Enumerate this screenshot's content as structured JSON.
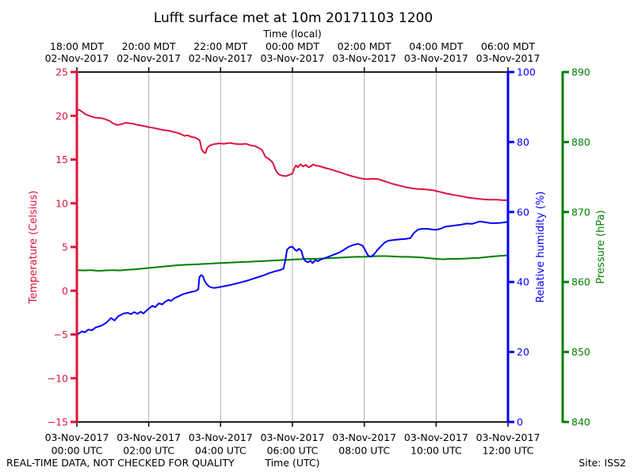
{
  "figure": {
    "footer_note": "REAL-TIME DATA, NOT CHECKED FOR QUALITY",
    "site_label": "Site: ISS2"
  },
  "chart_data": {
    "type": "line",
    "title": "Lufft surface met at 10m 20171103 1200",
    "x_range_hours": [
      0,
      12
    ],
    "grid_hours": [
      2,
      4,
      6,
      8,
      10
    ],
    "grid_color": "#b0b0b0",
    "axis_black": "#000000",
    "top_axis": {
      "label": "Time (local)",
      "tick_hours": [
        0,
        2,
        4,
        6,
        8,
        10,
        12
      ],
      "ticks": [
        {
          "time": "18:00 MDT",
          "date": "02-Nov-2017"
        },
        {
          "time": "20:00 MDT",
          "date": "02-Nov-2017"
        },
        {
          "time": "22:00 MDT",
          "date": "02-Nov-2017"
        },
        {
          "time": "00:00 MDT",
          "date": "03-Nov-2017"
        },
        {
          "time": "02:00 MDT",
          "date": "03-Nov-2017"
        },
        {
          "time": "04:00 MDT",
          "date": "03-Nov-2017"
        },
        {
          "time": "06:00 MDT",
          "date": "03-Nov-2017"
        }
      ]
    },
    "bottom_axis": {
      "label": "Time (UTC)",
      "tick_hours": [
        0,
        2,
        4,
        6,
        8,
        10,
        12
      ],
      "ticks": [
        {
          "date": "03-Nov-2017",
          "time": "00:00 UTC"
        },
        {
          "date": "03-Nov-2017",
          "time": "02:00 UTC"
        },
        {
          "date": "03-Nov-2017",
          "time": "04:00 UTC"
        },
        {
          "date": "03-Nov-2017",
          "time": "06:00 UTC"
        },
        {
          "date": "03-Nov-2017",
          "time": "08:00 UTC"
        },
        {
          "date": "03-Nov-2017",
          "time": "10:00 UTC"
        },
        {
          "date": "03-Nov-2017",
          "time": "12:00 UTC"
        }
      ]
    },
    "left_axis": {
      "label": "Temperature (Celsius)",
      "color": "#dc143c",
      "range": [
        -15,
        25
      ],
      "ticks": [
        25,
        20,
        15,
        10,
        5,
        0,
        -5,
        -10,
        -15
      ]
    },
    "right_axis_1": {
      "label": "Relative humidity (%)",
      "color": "#0000ff",
      "range": [
        0,
        100
      ],
      "ticks": [
        100,
        80,
        60,
        40,
        20,
        0
      ]
    },
    "right_axis_2": {
      "label": "Pressure (hPa)",
      "color": "#008000",
      "range": [
        840,
        890
      ],
      "ticks": [
        890,
        880,
        870,
        860,
        850,
        840
      ]
    },
    "series": [
      {
        "name": "temperature_c",
        "axis": "left",
        "color": "#dc143c",
        "points": [
          [
            0,
            20.7
          ],
          [
            0.08,
            20.65
          ],
          [
            0.15,
            20.45
          ],
          [
            0.25,
            20.15
          ],
          [
            0.35,
            20.0
          ],
          [
            0.5,
            19.8
          ],
          [
            0.62,
            19.75
          ],
          [
            0.72,
            19.7
          ],
          [
            0.82,
            19.55
          ],
          [
            0.92,
            19.4
          ],
          [
            1.0,
            19.15
          ],
          [
            1.08,
            19.0
          ],
          [
            1.15,
            18.95
          ],
          [
            1.25,
            19.05
          ],
          [
            1.35,
            19.2
          ],
          [
            1.45,
            19.15
          ],
          [
            1.55,
            19.1
          ],
          [
            1.7,
            18.95
          ],
          [
            1.85,
            18.85
          ],
          [
            2.0,
            18.7
          ],
          [
            2.15,
            18.6
          ],
          [
            2.3,
            18.45
          ],
          [
            2.45,
            18.35
          ],
          [
            2.55,
            18.3
          ],
          [
            2.65,
            18.2
          ],
          [
            2.8,
            18.05
          ],
          [
            2.9,
            17.9
          ],
          [
            3.0,
            17.7
          ],
          [
            3.08,
            17.78
          ],
          [
            3.18,
            17.6
          ],
          [
            3.3,
            17.5
          ],
          [
            3.42,
            17.2
          ],
          [
            3.47,
            16.2
          ],
          [
            3.52,
            15.85
          ],
          [
            3.58,
            15.75
          ],
          [
            3.63,
            16.35
          ],
          [
            3.7,
            16.6
          ],
          [
            3.8,
            16.75
          ],
          [
            3.95,
            16.85
          ],
          [
            4.1,
            16.8
          ],
          [
            4.25,
            16.9
          ],
          [
            4.4,
            16.8
          ],
          [
            4.55,
            16.75
          ],
          [
            4.7,
            16.8
          ],
          [
            4.85,
            16.6
          ],
          [
            4.95,
            16.55
          ],
          [
            5.05,
            16.35
          ],
          [
            5.15,
            16.1
          ],
          [
            5.25,
            15.3
          ],
          [
            5.35,
            15.05
          ],
          [
            5.45,
            14.65
          ],
          [
            5.55,
            13.65
          ],
          [
            5.62,
            13.3
          ],
          [
            5.72,
            13.15
          ],
          [
            5.82,
            13.1
          ],
          [
            5.92,
            13.25
          ],
          [
            6.0,
            13.4
          ],
          [
            6.05,
            14.0
          ],
          [
            6.1,
            14.35
          ],
          [
            6.15,
            14.1
          ],
          [
            6.22,
            14.45
          ],
          [
            6.3,
            14.2
          ],
          [
            6.37,
            14.4
          ],
          [
            6.45,
            14.1
          ],
          [
            6.52,
            14.25
          ],
          [
            6.58,
            14.45
          ],
          [
            6.65,
            14.3
          ],
          [
            6.75,
            14.25
          ],
          [
            6.9,
            14.05
          ],
          [
            7.05,
            13.9
          ],
          [
            7.2,
            13.7
          ],
          [
            7.35,
            13.5
          ],
          [
            7.5,
            13.3
          ],
          [
            7.65,
            13.1
          ],
          [
            7.8,
            12.95
          ],
          [
            7.95,
            12.8
          ],
          [
            8.1,
            12.75
          ],
          [
            8.25,
            12.8
          ],
          [
            8.4,
            12.75
          ],
          [
            8.5,
            12.6
          ],
          [
            8.65,
            12.4
          ],
          [
            8.8,
            12.2
          ],
          [
            9.0,
            12.0
          ],
          [
            9.2,
            11.8
          ],
          [
            9.35,
            11.7
          ],
          [
            9.5,
            11.62
          ],
          [
            9.7,
            11.58
          ],
          [
            9.9,
            11.5
          ],
          [
            10.1,
            11.3
          ],
          [
            10.3,
            11.1
          ],
          [
            10.5,
            10.95
          ],
          [
            10.7,
            10.8
          ],
          [
            10.9,
            10.65
          ],
          [
            11.1,
            10.55
          ],
          [
            11.3,
            10.45
          ],
          [
            11.5,
            10.4
          ],
          [
            11.7,
            10.4
          ],
          [
            11.85,
            10.35
          ],
          [
            12,
            10.35
          ]
        ]
      },
      {
        "name": "pressure_hpa",
        "axis": "right2",
        "color": "#008000",
        "points": [
          [
            0,
            861.7
          ],
          [
            0.2,
            861.65
          ],
          [
            0.4,
            861.7
          ],
          [
            0.6,
            861.6
          ],
          [
            0.8,
            861.65
          ],
          [
            1.0,
            861.7
          ],
          [
            1.2,
            861.65
          ],
          [
            1.4,
            861.75
          ],
          [
            1.6,
            861.8
          ],
          [
            1.8,
            861.9
          ],
          [
            2.0,
            862.0
          ],
          [
            2.2,
            862.1
          ],
          [
            2.4,
            862.2
          ],
          [
            2.6,
            862.3
          ],
          [
            2.8,
            862.4
          ],
          [
            3.0,
            862.45
          ],
          [
            3.2,
            862.5
          ],
          [
            3.4,
            862.55
          ],
          [
            3.6,
            862.6
          ],
          [
            3.8,
            862.65
          ],
          [
            4.0,
            862.7
          ],
          [
            4.2,
            862.75
          ],
          [
            4.4,
            862.8
          ],
          [
            4.6,
            862.85
          ],
          [
            4.8,
            862.9
          ],
          [
            5.0,
            862.95
          ],
          [
            5.2,
            863.0
          ],
          [
            5.4,
            863.05
          ],
          [
            5.6,
            863.1
          ],
          [
            5.8,
            863.15
          ],
          [
            6.0,
            863.2
          ],
          [
            6.2,
            863.25
          ],
          [
            6.4,
            863.3
          ],
          [
            6.6,
            863.3
          ],
          [
            6.8,
            863.35
          ],
          [
            7.0,
            863.4
          ],
          [
            7.2,
            863.45
          ],
          [
            7.4,
            863.5
          ],
          [
            7.6,
            863.55
          ],
          [
            7.8,
            863.6
          ],
          [
            8.0,
            863.6
          ],
          [
            8.2,
            863.65
          ],
          [
            8.4,
            863.7
          ],
          [
            8.6,
            863.7
          ],
          [
            8.8,
            863.65
          ],
          [
            9.0,
            863.6
          ],
          [
            9.2,
            863.6
          ],
          [
            9.4,
            863.55
          ],
          [
            9.6,
            863.5
          ],
          [
            9.8,
            863.4
          ],
          [
            10.0,
            863.3
          ],
          [
            10.2,
            863.25
          ],
          [
            10.4,
            863.3
          ],
          [
            10.6,
            863.3
          ],
          [
            10.8,
            863.35
          ],
          [
            11.0,
            863.4
          ],
          [
            11.2,
            863.45
          ],
          [
            11.4,
            863.55
          ],
          [
            11.6,
            863.65
          ],
          [
            11.8,
            863.75
          ],
          [
            12,
            863.8
          ]
        ]
      },
      {
        "name": "relative_humidity_pct",
        "axis": "right1",
        "color": "#0000ff",
        "points": [
          [
            0,
            24.8
          ],
          [
            0.05,
            25.3
          ],
          [
            0.15,
            25.9
          ],
          [
            0.22,
            25.6
          ],
          [
            0.32,
            26.4
          ],
          [
            0.42,
            26.2
          ],
          [
            0.52,
            27.0
          ],
          [
            0.62,
            27.3
          ],
          [
            0.72,
            27.7
          ],
          [
            0.82,
            28.4
          ],
          [
            0.95,
            29.7
          ],
          [
            1.05,
            29.0
          ],
          [
            1.15,
            30.2
          ],
          [
            1.3,
            31.0
          ],
          [
            1.42,
            31.2
          ],
          [
            1.5,
            30.8
          ],
          [
            1.6,
            31.4
          ],
          [
            1.68,
            30.9
          ],
          [
            1.78,
            31.5
          ],
          [
            1.85,
            31.0
          ],
          [
            2.0,
            32.4
          ],
          [
            2.1,
            33.2
          ],
          [
            2.18,
            32.8
          ],
          [
            2.28,
            33.9
          ],
          [
            2.38,
            33.6
          ],
          [
            2.45,
            34.3
          ],
          [
            2.55,
            34.9
          ],
          [
            2.62,
            34.6
          ],
          [
            2.72,
            35.4
          ],
          [
            2.85,
            36.0
          ],
          [
            2.95,
            36.5
          ],
          [
            3.08,
            36.9
          ],
          [
            3.2,
            37.2
          ],
          [
            3.3,
            37.4
          ],
          [
            3.38,
            37.9
          ],
          [
            3.41,
            41.4
          ],
          [
            3.46,
            42.0
          ],
          [
            3.51,
            41.6
          ],
          [
            3.56,
            40.2
          ],
          [
            3.62,
            39.3
          ],
          [
            3.7,
            38.6
          ],
          [
            3.8,
            38.3
          ],
          [
            3.9,
            38.4
          ],
          [
            4.0,
            38.6
          ],
          [
            4.15,
            38.9
          ],
          [
            4.3,
            39.2
          ],
          [
            4.45,
            39.6
          ],
          [
            4.6,
            40.0
          ],
          [
            4.75,
            40.4
          ],
          [
            4.9,
            40.9
          ],
          [
            5.05,
            41.4
          ],
          [
            5.2,
            41.9
          ],
          [
            5.35,
            42.5
          ],
          [
            5.5,
            43.0
          ],
          [
            5.65,
            43.4
          ],
          [
            5.75,
            43.8
          ],
          [
            5.8,
            46.0
          ],
          [
            5.85,
            49.2
          ],
          [
            5.92,
            49.9
          ],
          [
            6.0,
            50.1
          ],
          [
            6.07,
            49.2
          ],
          [
            6.12,
            48.9
          ],
          [
            6.18,
            49.5
          ],
          [
            6.25,
            48.9
          ],
          [
            6.3,
            47.0
          ],
          [
            6.36,
            46.0
          ],
          [
            6.44,
            45.6
          ],
          [
            6.5,
            46.1
          ],
          [
            6.56,
            45.4
          ],
          [
            6.64,
            46.3
          ],
          [
            6.7,
            45.9
          ],
          [
            6.8,
            46.5
          ],
          [
            6.9,
            46.8
          ],
          [
            7.0,
            47.2
          ],
          [
            7.15,
            47.8
          ],
          [
            7.3,
            48.4
          ],
          [
            7.45,
            49.3
          ],
          [
            7.55,
            50.0
          ],
          [
            7.7,
            50.6
          ],
          [
            7.82,
            50.9
          ],
          [
            7.95,
            50.4
          ],
          [
            8.02,
            49.2
          ],
          [
            8.1,
            47.6
          ],
          [
            8.18,
            47.2
          ],
          [
            8.27,
            47.9
          ],
          [
            8.37,
            49.2
          ],
          [
            8.47,
            50.3
          ],
          [
            8.57,
            51.3
          ],
          [
            8.67,
            51.8
          ],
          [
            8.8,
            52.0
          ],
          [
            9.0,
            52.2
          ],
          [
            9.15,
            52.3
          ],
          [
            9.28,
            52.5
          ],
          [
            9.38,
            54.0
          ],
          [
            9.5,
            55.0
          ],
          [
            9.62,
            55.2
          ],
          [
            9.75,
            55.2
          ],
          [
            9.9,
            55.0
          ],
          [
            10.0,
            54.9
          ],
          [
            10.12,
            55.2
          ],
          [
            10.25,
            55.8
          ],
          [
            10.4,
            56.0
          ],
          [
            10.55,
            56.2
          ],
          [
            10.7,
            56.4
          ],
          [
            10.85,
            56.7
          ],
          [
            11.0,
            56.6
          ],
          [
            11.12,
            57.0
          ],
          [
            11.22,
            57.3
          ],
          [
            11.35,
            57.1
          ],
          [
            11.5,
            56.85
          ],
          [
            11.65,
            56.8
          ],
          [
            11.8,
            56.9
          ],
          [
            12,
            57.2
          ]
        ]
      }
    ]
  }
}
